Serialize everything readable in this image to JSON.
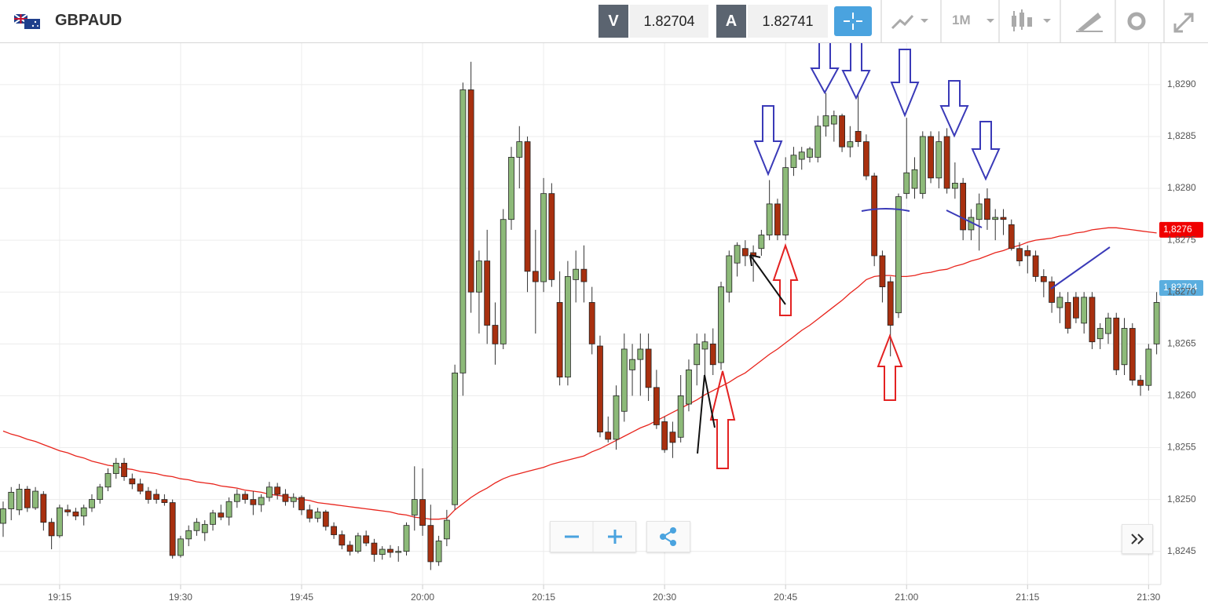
{
  "toolbar": {
    "symbol": "GBPAUD",
    "bid_label": "V",
    "bid": "1.82704",
    "ask_label": "A",
    "ask": "1.82741",
    "timeframe": "1M"
  },
  "chart_data": {
    "type": "candlestick",
    "categories": [
      null,
      null,
      null,
      null,
      null,
      null,
      null,
      "19:15",
      null,
      null,
      null,
      null,
      null,
      null,
      null,
      null,
      null,
      null,
      null,
      null,
      null,
      null,
      "19:30",
      null,
      null,
      null,
      null,
      null,
      null,
      null,
      null,
      null,
      null,
      null,
      null,
      null,
      null,
      "19:45",
      null,
      null,
      null,
      null,
      null,
      null,
      null,
      null,
      null,
      null,
      null,
      null,
      null,
      null,
      "20:00",
      null,
      null,
      null,
      null,
      null,
      null,
      null,
      null,
      null,
      null,
      null,
      null,
      null,
      null,
      "20:15",
      null,
      null,
      null,
      null,
      null,
      null,
      null,
      null,
      null,
      null,
      null,
      null,
      null,
      null,
      "20:30",
      null,
      null,
      null,
      null,
      null,
      null,
      null,
      null,
      null,
      null,
      null,
      null,
      null,
      null,
      "20:45",
      null,
      null,
      null,
      null,
      null,
      null,
      null,
      null,
      null,
      null,
      null,
      null,
      null,
      null,
      "21:00",
      null,
      null,
      null,
      null,
      null,
      null,
      null,
      null,
      null,
      null,
      null,
      null,
      null,
      null,
      "21:15",
      null,
      null,
      null,
      null,
      null,
      null,
      null,
      null,
      null,
      null,
      null,
      null,
      null,
      null,
      "21:30",
      null
    ],
    "ohlc": [
      [
        1.82477,
        1.82498,
        1.82464,
        1.82491
      ],
      [
        1.82491,
        1.82512,
        1.8248,
        1.82507
      ],
      [
        1.8249,
        1.82515,
        1.82485,
        1.8251
      ],
      [
        1.8251,
        1.82513,
        1.82488,
        1.82492
      ],
      [
        1.82492,
        1.82512,
        1.8249,
        1.82508
      ],
      [
        1.82505,
        1.82508,
        1.8247,
        1.82478
      ],
      [
        1.82478,
        1.82482,
        1.82452,
        1.82465
      ],
      [
        1.82465,
        1.82495,
        1.82463,
        1.82492
      ],
      [
        1.8249,
        1.82495,
        1.82484,
        1.82488
      ],
      [
        1.82488,
        1.82492,
        1.8248,
        1.82484
      ],
      [
        1.82484,
        1.82495,
        1.82475,
        1.82492
      ],
      [
        1.82492,
        1.82505,
        1.82488,
        1.825
      ],
      [
        1.825,
        1.82515,
        1.82496,
        1.82512
      ],
      [
        1.82512,
        1.8253,
        1.82508,
        1.82525
      ],
      [
        1.82525,
        1.8254,
        1.8252,
        1.82535
      ],
      [
        1.82535,
        1.8254,
        1.82518,
        1.82522
      ],
      [
        1.8252,
        1.82525,
        1.8251,
        1.82515
      ],
      [
        1.82515,
        1.8252,
        1.82505,
        1.82508
      ],
      [
        1.82508,
        1.82512,
        1.82496,
        1.825
      ],
      [
        1.82505,
        1.8251,
        1.82496,
        1.825
      ],
      [
        1.825,
        1.82505,
        1.82494,
        1.82497
      ],
      [
        1.82497,
        1.825,
        1.82443,
        1.82446
      ],
      [
        1.82446,
        1.82465,
        1.82444,
        1.82462
      ],
      [
        1.82462,
        1.82475,
        1.82455,
        1.8247
      ],
      [
        1.8247,
        1.82482,
        1.82465,
        1.82478
      ],
      [
        1.82468,
        1.8248,
        1.8246,
        1.82476
      ],
      [
        1.82476,
        1.8249,
        1.8247,
        1.82487
      ],
      [
        1.82487,
        1.82495,
        1.8248,
        1.82483
      ],
      [
        1.82483,
        1.82502,
        1.82475,
        1.82498
      ],
      [
        1.82498,
        1.8251,
        1.82492,
        1.82505
      ],
      [
        1.82505,
        1.82508,
        1.82496,
        1.825
      ],
      [
        1.825,
        1.82508,
        1.82485,
        1.82495
      ],
      [
        1.82495,
        1.82505,
        1.82488,
        1.82502
      ],
      [
        1.82502,
        1.82517,
        1.82498,
        1.82512
      ],
      [
        1.82512,
        1.82516,
        1.825,
        1.82505
      ],
      [
        1.82505,
        1.8251,
        1.82494,
        1.82498
      ],
      [
        1.82498,
        1.82506,
        1.82492,
        1.82502
      ],
      [
        1.82502,
        1.82504,
        1.82485,
        1.8249
      ],
      [
        1.8249,
        1.82495,
        1.82478,
        1.82482
      ],
      [
        1.82482,
        1.82492,
        1.82478,
        1.82488
      ],
      [
        1.82488,
        1.8249,
        1.8247,
        1.82474
      ],
      [
        1.82474,
        1.82478,
        1.82462,
        1.82466
      ],
      [
        1.82466,
        1.8247,
        1.82452,
        1.82456
      ],
      [
        1.82456,
        1.8246,
        1.82446,
        1.8245
      ],
      [
        1.8245,
        1.82468,
        1.82448,
        1.82465
      ],
      [
        1.82465,
        1.8247,
        1.82455,
        1.82458
      ],
      [
        1.82458,
        1.82462,
        1.8244,
        1.82447
      ],
      [
        1.82447,
        1.82455,
        1.82442,
        1.82452
      ],
      [
        1.82452,
        1.82456,
        1.82444,
        1.82449
      ],
      [
        1.82449,
        1.82455,
        1.8244,
        1.8245
      ],
      [
        1.8245,
        1.82478,
        1.82446,
        1.82475
      ],
      [
        1.82485,
        1.82532,
        1.8247,
        1.825
      ],
      [
        1.825,
        1.8253,
        1.82465,
        1.82475
      ],
      [
        1.82475,
        1.82495,
        1.82432,
        1.8244
      ],
      [
        1.8244,
        1.82465,
        1.82436,
        1.8246
      ],
      [
        1.82462,
        1.8249,
        1.82455,
        1.8248
      ],
      [
        1.82495,
        1.8263,
        1.8249,
        1.82622
      ],
      [
        1.82622,
        1.82902,
        1.826,
        1.82895
      ],
      [
        1.82895,
        1.82922,
        1.8268,
        1.827
      ],
      [
        1.827,
        1.8274,
        1.8266,
        1.8273
      ],
      [
        1.8273,
        1.8276,
        1.8265,
        1.82668
      ],
      [
        1.82668,
        1.8269,
        1.8263,
        1.8265
      ],
      [
        1.8265,
        1.8278,
        1.82645,
        1.8277
      ],
      [
        1.8277,
        1.8284,
        1.8276,
        1.8283
      ],
      [
        1.8283,
        1.8286,
        1.828,
        1.82845
      ],
      [
        1.82845,
        1.8285,
        1.827,
        1.8272
      ],
      [
        1.8272,
        1.8276,
        1.8266,
        1.8271
      ],
      [
        1.8271,
        1.8281,
        1.827,
        1.82795
      ],
      [
        1.82795,
        1.82805,
        1.82705,
        1.82712
      ],
      [
        1.8269,
        1.8272,
        1.8261,
        1.82618
      ],
      [
        1.82618,
        1.8273,
        1.8261,
        1.82715
      ],
      [
        1.82712,
        1.8274,
        1.8269,
        1.82722
      ],
      [
        1.82722,
        1.82745,
        1.8269,
        1.8271
      ],
      [
        1.8269,
        1.82705,
        1.8264,
        1.8265
      ],
      [
        1.82648,
        1.82658,
        1.8256,
        1.82565
      ],
      [
        1.82565,
        1.8258,
        1.82555,
        1.82558
      ],
      [
        1.82558,
        1.8261,
        1.82548,
        1.826
      ],
      [
        1.82585,
        1.8266,
        1.82575,
        1.82645
      ],
      [
        1.82625,
        1.8265,
        1.826,
        1.82635
      ],
      [
        1.82635,
        1.8266,
        1.826,
        1.82645
      ],
      [
        1.82645,
        1.8266,
        1.82595,
        1.82608
      ],
      [
        1.82608,
        1.82625,
        1.82568,
        1.82572
      ],
      [
        1.82575,
        1.8258,
        1.82545,
        1.82548
      ],
      [
        1.82565,
        1.82575,
        1.8254,
        1.82555
      ],
      [
        1.8256,
        1.8262,
        1.82555,
        1.826
      ],
      [
        1.82592,
        1.82635,
        1.82585,
        1.82625
      ],
      [
        1.8263,
        1.8266,
        1.8261,
        1.8265
      ],
      [
        1.82645,
        1.8266,
        1.8262,
        1.82652
      ],
      [
        1.8265,
        1.82665,
        1.8262,
        1.8263
      ],
      [
        1.82632,
        1.8271,
        1.82625,
        1.82705
      ],
      [
        1.827,
        1.8274,
        1.8269,
        1.82735
      ],
      [
        1.82728,
        1.82748,
        1.82715,
        1.82745
      ],
      [
        1.82742,
        1.8275,
        1.82725,
        1.82735
      ],
      [
        1.82738,
        1.82745,
        1.8271,
        1.82735
      ],
      [
        1.82742,
        1.8276,
        1.82735,
        1.82755
      ],
      [
        1.82755,
        1.82808,
        1.8275,
        1.82785
      ],
      [
        1.82785,
        1.8279,
        1.8275,
        1.82755
      ],
      [
        1.82755,
        1.8283,
        1.8275,
        1.8282
      ],
      [
        1.8282,
        1.8284,
        1.82812,
        1.82832
      ],
      [
        1.82828,
        1.8284,
        1.82818,
        1.82835
      ],
      [
        1.8283,
        1.8284,
        1.82825,
        1.82838
      ],
      [
        1.8283,
        1.8287,
        1.82825,
        1.8286
      ],
      [
        1.8286,
        1.82892,
        1.8285,
        1.8287
      ],
      [
        1.82862,
        1.82875,
        1.82845,
        1.8287
      ],
      [
        1.8287,
        1.82872,
        1.82835,
        1.8284
      ],
      [
        1.8284,
        1.8286,
        1.8283,
        1.82845
      ],
      [
        1.82855,
        1.82892,
        1.8284,
        1.82845
      ],
      [
        1.82845,
        1.82852,
        1.82808,
        1.82812
      ],
      [
        1.82812,
        1.82815,
        1.82725,
        1.82735
      ],
      [
        1.82735,
        1.8274,
        1.8269,
        1.82705
      ],
      [
        1.8271,
        1.82715,
        1.82638,
        1.82668
      ],
      [
        1.8268,
        1.82795,
        1.82675,
        1.82792
      ],
      [
        1.82795,
        1.82868,
        1.8279,
        1.82815
      ],
      [
        1.828,
        1.8283,
        1.8279,
        1.82818
      ],
      [
        1.82795,
        1.82855,
        1.8279,
        1.8285
      ],
      [
        1.8285,
        1.82855,
        1.82805,
        1.8281
      ],
      [
        1.8281,
        1.82855,
        1.828,
        1.82845
      ],
      [
        1.8285,
        1.82858,
        1.82795,
        1.828
      ],
      [
        1.828,
        1.82825,
        1.8279,
        1.82805
      ],
      [
        1.82805,
        1.8281,
        1.8275,
        1.8276
      ],
      [
        1.8276,
        1.8278,
        1.8275,
        1.82772
      ],
      [
        1.8277,
        1.82795,
        1.8274,
        1.82785
      ],
      [
        1.8279,
        1.828,
        1.8276,
        1.8277
      ],
      [
        1.8277,
        1.8278,
        1.8275,
        1.82772
      ],
      [
        1.82772,
        1.8278,
        1.82755,
        1.8277
      ],
      [
        1.82765,
        1.8277,
        1.8274,
        1.82742
      ],
      [
        1.82742,
        1.82748,
        1.82725,
        1.8273
      ],
      [
        1.8274,
        1.82745,
        1.82718,
        1.82735
      ],
      [
        1.82735,
        1.8274,
        1.8271,
        1.82715
      ],
      [
        1.82715,
        1.82722,
        1.82695,
        1.8271
      ],
      [
        1.8271,
        1.82715,
        1.8268,
        1.8269
      ],
      [
        1.82685,
        1.827,
        1.8267,
        1.82695
      ],
      [
        1.8269,
        1.827,
        1.8266,
        1.82665
      ],
      [
        1.82695,
        1.827,
        1.8267,
        1.82675
      ],
      [
        1.8267,
        1.827,
        1.8266,
        1.82695
      ],
      [
        1.82695,
        1.827,
        1.82645,
        1.82652
      ],
      [
        1.82655,
        1.8267,
        1.82645,
        1.82665
      ],
      [
        1.8266,
        1.8268,
        1.8265,
        1.82675
      ],
      [
        1.82675,
        1.8268,
        1.8262,
        1.82625
      ],
      [
        1.8263,
        1.82675,
        1.8262,
        1.82665
      ],
      [
        1.82665,
        1.8267,
        1.8261,
        1.82615
      ],
      [
        1.82615,
        1.8262,
        1.826,
        1.8261
      ],
      [
        1.8261,
        1.8265,
        1.82605,
        1.82645
      ],
      [
        1.8265,
        1.827,
        1.8264,
        1.8269
      ]
    ],
    "up_color": "#8dba79",
    "down_color": "#a8300f",
    "moving_average": {
      "color": "#e8241c",
      "values": [
        1.82566,
        1.82563,
        1.82561,
        1.82558,
        1.82556,
        1.82553,
        1.8255,
        1.82547,
        1.82545,
        1.82542,
        1.8254,
        1.82537,
        1.82535,
        1.82533,
        1.82532,
        1.8253,
        1.82529,
        1.82527,
        1.82526,
        1.82525,
        1.82523,
        1.82522,
        1.8252,
        1.82519,
        1.82517,
        1.82516,
        1.82515,
        1.82513,
        1.82512,
        1.82511,
        1.82509,
        1.82508,
        1.82507,
        1.82505,
        1.82504,
        1.82503,
        1.82501,
        1.825,
        1.82499,
        1.82497,
        1.82496,
        1.82495,
        1.82494,
        1.82493,
        1.82492,
        1.82491,
        1.8249,
        1.82489,
        1.82488,
        1.82486,
        1.82485,
        1.82483,
        1.82482,
        1.82481,
        1.82481,
        1.82482,
        1.8249,
        1.82496,
        1.82502,
        1.82507,
        1.82511,
        1.82516,
        1.8252,
        1.82523,
        1.82525,
        1.82527,
        1.82529,
        1.82531,
        1.82534,
        1.82536,
        1.82538,
        1.8254,
        1.82542,
        1.82546,
        1.82549,
        1.82553,
        1.82557,
        1.82561,
        1.82565,
        1.82569,
        1.82572,
        1.82576,
        1.8258,
        1.82584,
        1.82588,
        1.82592,
        1.82596,
        1.82601,
        1.82605,
        1.82609,
        1.82613,
        1.82618,
        1.82622,
        1.82628,
        1.82634,
        1.8264,
        1.82645,
        1.82651,
        1.82657,
        1.82663,
        1.82668,
        1.82674,
        1.8268,
        1.82686,
        1.82692,
        1.82699,
        1.82705,
        1.82712,
        1.82715,
        1.82716,
        1.82716,
        1.82715,
        1.82715,
        1.82716,
        1.82718,
        1.82719,
        1.82721,
        1.82722,
        1.82725,
        1.82727,
        1.8273,
        1.82732,
        1.82735,
        1.82738,
        1.8274,
        1.82743,
        1.82745,
        1.82748,
        1.8275,
        1.82751,
        1.82752,
        1.82754,
        1.82755,
        1.82757,
        1.82758,
        1.8276,
        1.82761,
        1.82762,
        1.82762,
        1.82761,
        1.8276,
        1.82759,
        1.82758,
        1.82757
      ]
    },
    "ylim": [
      1.82418,
      1.8294
    ],
    "yticks": [
      {
        "value": 1.8245,
        "label": "1,8245"
      },
      {
        "value": 1.825,
        "label": "1,8250"
      },
      {
        "value": 1.8255,
        "label": "1,8255"
      },
      {
        "value": 1.826,
        "label": "1,8260"
      },
      {
        "value": 1.8265,
        "label": "1,8265"
      },
      {
        "value": 1.827,
        "label": "1,8270"
      },
      {
        "value": 1.8275,
        "label": "1,8275"
      },
      {
        "value": 1.828,
        "label": "1,8280"
      },
      {
        "value": 1.8285,
        "label": "1,8285"
      },
      {
        "value": 1.829,
        "label": "1,8290"
      }
    ],
    "grid": true,
    "ma_price": {
      "value": 1.8276,
      "label": "1,8276",
      "color": "#f00000"
    },
    "last_price": {
      "value": 1.82704,
      "label": "1,82704",
      "color": "#5aaedf"
    }
  }
}
